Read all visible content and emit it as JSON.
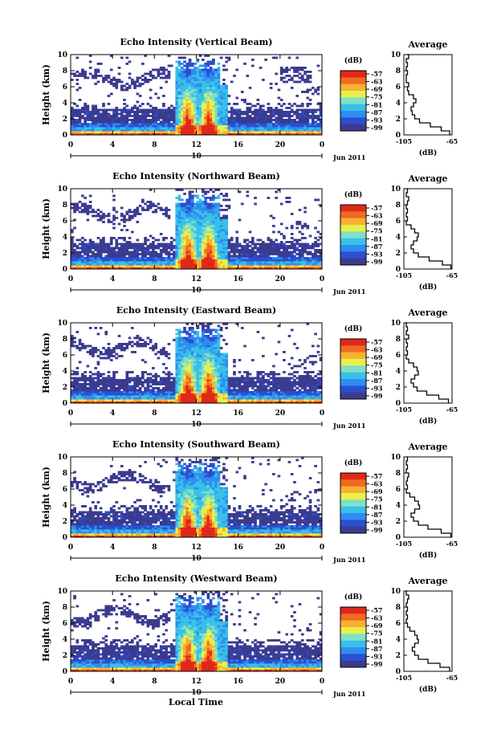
{
  "figure": {
    "xlabel": "Local Time",
    "date_label": "Jun 2011",
    "panel_height_label": "Height (km)",
    "colorbar_unit": "(dB)",
    "profile_title": "Average",
    "profile_xlabel": "(dB)"
  },
  "colors": {
    "palette": [
      "#3b3b8f",
      "#2b4fd0",
      "#2f8cf0",
      "#39c0e8",
      "#7fe0c8",
      "#e8f04a",
      "#f8b030",
      "#f06a20",
      "#e0281a"
    ]
  },
  "chart_data": [
    {
      "type": "heatmap",
      "title": "Echo Intensity (Vertical Beam)",
      "ylabel": "Height (km)",
      "xlabel": "Local Time",
      "xlim": [
        0,
        24
      ],
      "ylim": [
        0,
        10
      ],
      "xticks": [
        "0",
        "4",
        "8",
        "12",
        "16",
        "20",
        "0"
      ],
      "yticks": [
        "0",
        "2",
        "4",
        "6",
        "8",
        "10"
      ],
      "date_ticks": [
        "10"
      ],
      "colorbar": {
        "label": "(dB)",
        "ticks": [
          "-57",
          "-63",
          "-69",
          "-75",
          "-81",
          "-87",
          "-93",
          "-99"
        ]
      },
      "profile": {
        "title": "Average",
        "xlabel": "(dB)",
        "xticks": [
          "-105",
          "-65"
        ],
        "xlim": [
          -105,
          -65
        ],
        "ylim": [
          0,
          10
        ],
        "heights": [
          0,
          0.5,
          1,
          1.5,
          2,
          2.5,
          3,
          3.5,
          4,
          4.5,
          5,
          5.5,
          6,
          6.5,
          7,
          7.5,
          8,
          8.5,
          9,
          9.5,
          10
        ],
        "values": [
          -67,
          -74,
          -83,
          -92,
          -96,
          -98,
          -99,
          -97,
          -95,
          -97,
          -101,
          -102,
          -101,
          -103,
          -103,
          -102,
          -103,
          -102,
          -103,
          -101,
          -103
        ]
      }
    },
    {
      "type": "heatmap",
      "title": "Echo Intensity (Northward Beam)",
      "ylabel": "Height (km)",
      "xlabel": "Local Time",
      "xlim": [
        0,
        24
      ],
      "ylim": [
        0,
        10
      ],
      "xticks": [
        "0",
        "4",
        "8",
        "12",
        "16",
        "20",
        "0"
      ],
      "yticks": [
        "0",
        "2",
        "4",
        "6",
        "8",
        "10"
      ],
      "date_ticks": [
        "10"
      ],
      "colorbar": {
        "label": "(dB)",
        "ticks": [
          "-57",
          "-63",
          "-69",
          "-75",
          "-81",
          "-87",
          "-93",
          "-99"
        ]
      },
      "profile": {
        "title": "Average",
        "xlabel": "(dB)",
        "xticks": [
          "-105",
          "-65"
        ],
        "xlim": [
          -105,
          -65
        ],
        "ylim": [
          0,
          10
        ],
        "heights": [
          0,
          0.5,
          1,
          1.5,
          2,
          2.5,
          3,
          3.5,
          4,
          4.5,
          5,
          5.5,
          6,
          6.5,
          7,
          7.5,
          8,
          8.5,
          9,
          9.5,
          10
        ],
        "values": [
          -66,
          -73,
          -84,
          -93,
          -97,
          -99,
          -97,
          -94,
          -93,
          -96,
          -99,
          -103,
          -102,
          -103,
          -102,
          -103,
          -102,
          -101,
          -103,
          -102,
          -103
        ]
      }
    },
    {
      "type": "heatmap",
      "title": "Echo Intensity (Eastward Beam)",
      "ylabel": "Height (km)",
      "xlabel": "Local Time",
      "xlim": [
        0,
        24
      ],
      "ylim": [
        0,
        10
      ],
      "xticks": [
        "0",
        "4",
        "8",
        "12",
        "16",
        "20",
        "0"
      ],
      "yticks": [
        "0",
        "2",
        "4",
        "6",
        "8",
        "10"
      ],
      "date_ticks": [
        "10"
      ],
      "colorbar": {
        "label": "(dB)",
        "ticks": [
          "-57",
          "-63",
          "-69",
          "-75",
          "-81",
          "-87",
          "-93",
          "-99"
        ]
      },
      "profile": {
        "title": "Average",
        "xlabel": "(dB)",
        "xticks": [
          "-105",
          "-65"
        ],
        "xlim": [
          -105,
          -65
        ],
        "ylim": [
          0,
          10
        ],
        "heights": [
          0,
          0.5,
          1,
          1.5,
          2,
          2.5,
          3,
          3.5,
          4,
          4.5,
          5,
          5.5,
          6,
          6.5,
          7,
          7.5,
          8,
          8.5,
          9,
          9.5,
          10
        ],
        "values": [
          -68,
          -76,
          -86,
          -94,
          -97,
          -99,
          -96,
          -93,
          -94,
          -97,
          -101,
          -103,
          -102,
          -103,
          -102,
          -103,
          -101,
          -103,
          -102,
          -103,
          -102
        ]
      }
    },
    {
      "type": "heatmap",
      "title": "Echo Intensity (Southward Beam)",
      "ylabel": "Height (km)",
      "xlabel": "Local Time",
      "xlim": [
        0,
        24
      ],
      "ylim": [
        0,
        10
      ],
      "xticks": [
        "0",
        "4",
        "8",
        "12",
        "16",
        "20",
        "0"
      ],
      "yticks": [
        "0",
        "2",
        "4",
        "6",
        "8",
        "10"
      ],
      "date_ticks": [
        "10"
      ],
      "colorbar": {
        "label": "(dB)",
        "ticks": [
          "-57",
          "-63",
          "-69",
          "-75",
          "-81",
          "-87",
          "-93",
          "-99"
        ]
      },
      "profile": {
        "title": "Average",
        "xlabel": "(dB)",
        "xticks": [
          "-105",
          "-65"
        ],
        "xlim": [
          -105,
          -65
        ],
        "ylim": [
          0,
          10
        ],
        "heights": [
          0,
          0.5,
          1,
          1.5,
          2,
          2.5,
          3,
          3.5,
          4,
          4.5,
          5,
          5.5,
          6,
          6.5,
          7,
          7.5,
          8,
          8.5,
          9,
          9.5,
          10
        ],
        "values": [
          -66,
          -74,
          -85,
          -93,
          -97,
          -99,
          -96,
          -92,
          -93,
          -96,
          -100,
          -103,
          -102,
          -103,
          -102,
          -101,
          -103,
          -102,
          -103,
          -102,
          -103
        ]
      }
    },
    {
      "type": "heatmap",
      "title": "Echo Intensity (Westward Beam)",
      "ylabel": "Height (km)",
      "xlabel": "Local Time",
      "xlim": [
        0,
        24
      ],
      "ylim": [
        0,
        10
      ],
      "xticks": [
        "0",
        "4",
        "8",
        "12",
        "16",
        "20",
        "0"
      ],
      "yticks": [
        "0",
        "2",
        "4",
        "6",
        "8",
        "10"
      ],
      "date_ticks": [
        "10"
      ],
      "colorbar": {
        "label": "(dB)",
        "ticks": [
          "-57",
          "-63",
          "-69",
          "-75",
          "-81",
          "-87",
          "-93",
          "-99"
        ]
      },
      "profile": {
        "title": "Average",
        "xlabel": "(dB)",
        "xticks": [
          "-105",
          "-65"
        ],
        "xlim": [
          -105,
          -65
        ],
        "ylim": [
          0,
          10
        ],
        "heights": [
          0,
          0.5,
          1,
          1.5,
          2,
          2.5,
          3,
          3.5,
          4,
          4.5,
          5,
          5.5,
          6,
          6.5,
          7,
          7.5,
          8,
          8.5,
          9,
          9.5,
          10
        ],
        "values": [
          -67,
          -75,
          -85,
          -93,
          -96,
          -98,
          -96,
          -93,
          -94,
          -96,
          -100,
          -102,
          -103,
          -102,
          -103,
          -102,
          -103,
          -102,
          -101,
          -103,
          -102
        ]
      }
    }
  ]
}
